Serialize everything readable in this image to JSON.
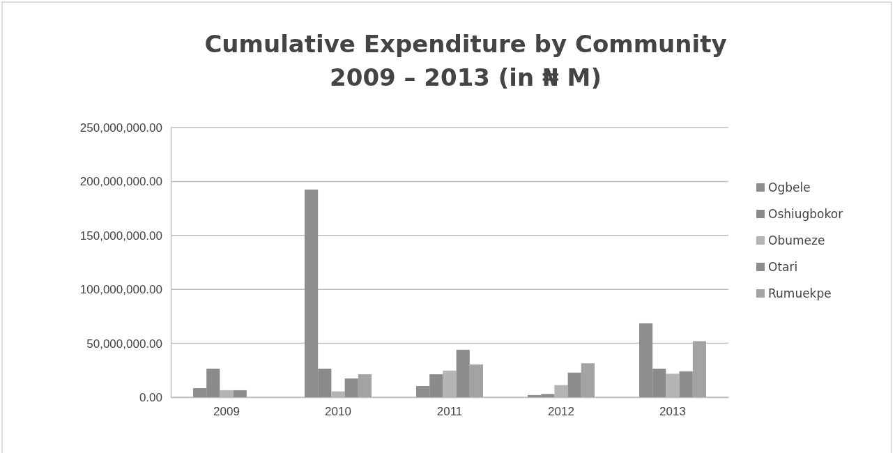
{
  "chart_data": {
    "type": "bar",
    "title": "Cumulative Expenditure by Community\n2009 – 2013 (in ₦ M)",
    "categories": [
      "2009",
      "2010",
      "2011",
      "2012",
      "2013"
    ],
    "series": [
      {
        "name": "Ogbele",
        "color": "#8e8e8e",
        "values": [
          8400000,
          192500000,
          10300000,
          2000000,
          68500000
        ]
      },
      {
        "name": "Oshiugbokor",
        "color": "#8a8a8a",
        "values": [
          26500000,
          26500000,
          21300000,
          3000000,
          26500000
        ]
      },
      {
        "name": "Obumeze",
        "color": "#b4b4b4",
        "values": [
          6500000,
          5400000,
          24700000,
          11300000,
          21800000
        ]
      },
      {
        "name": "Otari",
        "color": "#8c8c8c",
        "values": [
          6500000,
          17400000,
          44000000,
          22800000,
          24000000
        ]
      },
      {
        "name": "Rumuekpe",
        "color": "#a3a3a3",
        "values": [
          0,
          21300000,
          30400000,
          31500000,
          52000000
        ]
      }
    ],
    "ylim": [
      0,
      250000000
    ],
    "yticks": [
      {
        "value": 0,
        "label": "0.00"
      },
      {
        "value": 50000000,
        "label": "50,000,000.00"
      },
      {
        "value": 100000000,
        "label": "100,000,000.00"
      },
      {
        "value": 150000000,
        "label": "150,000,000.00"
      },
      {
        "value": 200000000,
        "label": "200,000,000.00"
      },
      {
        "value": 250000000,
        "label": "250,000,000.00"
      }
    ],
    "grid": "y",
    "legend": "right"
  }
}
